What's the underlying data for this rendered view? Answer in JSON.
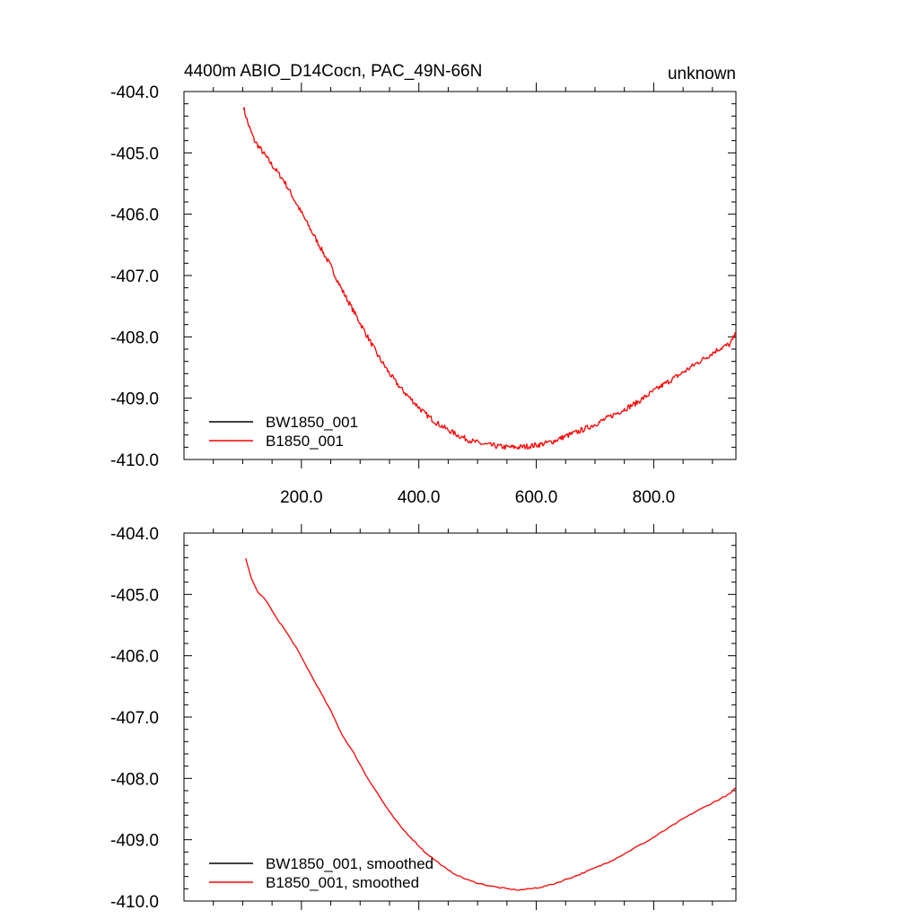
{
  "chart_data": [
    {
      "type": "line",
      "title": "4400m ABIO_D14Cocn, PAC_49N-66N",
      "right_title": "unknown",
      "xlim": [
        0,
        940
      ],
      "ylim": [
        -410.0,
        -404.0
      ],
      "x_ticks": [
        200,
        400,
        600,
        800
      ],
      "x_tick_labels": [
        "200.0",
        "400.0",
        "600.0",
        "800.0"
      ],
      "y_ticks": [
        -404,
        -405,
        -406,
        -407,
        -408,
        -409,
        -410
      ],
      "y_tick_labels": [
        "-404.0",
        "-405.0",
        "-406.0",
        "-407.0",
        "-408.0",
        "-409.0",
        "-410.0"
      ],
      "legend_position": "bottom-left",
      "noisy": true,
      "series": [
        {
          "name": "BW1850_001",
          "color": "#000000",
          "x": [],
          "y": []
        },
        {
          "name": "B1850_001",
          "color": "#ff0000",
          "x": [
            101,
            110,
            120,
            135,
            150,
            170,
            190,
            210,
            230,
            250,
            270,
            290,
            310,
            330,
            350,
            370,
            390,
            410,
            430,
            450,
            470,
            490,
            510,
            530,
            550,
            570,
            590,
            610,
            630,
            650,
            670,
            690,
            710,
            730,
            750,
            770,
            790,
            810,
            830,
            850,
            870,
            890,
            910,
            930,
            940
          ],
          "y": [
            -404.25,
            -404.55,
            -404.8,
            -405.0,
            -405.2,
            -405.45,
            -405.8,
            -406.15,
            -406.5,
            -406.85,
            -407.25,
            -407.6,
            -407.95,
            -408.3,
            -408.6,
            -408.85,
            -409.05,
            -409.25,
            -409.4,
            -409.52,
            -409.62,
            -409.7,
            -409.75,
            -409.78,
            -409.8,
            -409.8,
            -409.78,
            -409.75,
            -409.7,
            -409.62,
            -409.55,
            -409.47,
            -409.38,
            -409.28,
            -409.18,
            -409.08,
            -408.95,
            -408.82,
            -408.7,
            -408.58,
            -408.45,
            -408.33,
            -408.2,
            -408.12,
            -407.95
          ]
        }
      ]
    },
    {
      "type": "line",
      "xlim": [
        0,
        940
      ],
      "ylim": [
        -410.0,
        -404.0
      ],
      "x_ticks": [
        200,
        400,
        600,
        800
      ],
      "x_tick_labels": [],
      "y_ticks": [
        -404,
        -405,
        -406,
        -407,
        -408,
        -409,
        -410
      ],
      "y_tick_labels": [
        "-404.0",
        "-405.0",
        "-406.0",
        "-407.0",
        "-408.0",
        "-409.0",
        "-410.0"
      ],
      "legend_position": "bottom-left",
      "noisy": false,
      "series": [
        {
          "name": "BW1850_001, smoothed",
          "color": "#000000",
          "x": [],
          "y": []
        },
        {
          "name": "B1850_001, smoothed",
          "color": "#ff0000",
          "x": [
            105,
            115,
            125,
            140,
            155,
            170,
            190,
            210,
            230,
            250,
            270,
            290,
            310,
            330,
            350,
            370,
            390,
            410,
            430,
            450,
            470,
            490,
            510,
            530,
            550,
            570,
            590,
            610,
            630,
            650,
            670,
            690,
            710,
            730,
            750,
            770,
            790,
            810,
            830,
            850,
            870,
            890,
            910,
            930,
            940
          ],
          "y": [
            -404.4,
            -404.75,
            -404.95,
            -405.1,
            -405.35,
            -405.55,
            -405.85,
            -406.2,
            -406.55,
            -406.9,
            -407.3,
            -407.6,
            -407.95,
            -408.25,
            -408.55,
            -408.8,
            -409.0,
            -409.2,
            -409.35,
            -409.5,
            -409.6,
            -409.68,
            -409.73,
            -409.77,
            -409.8,
            -409.82,
            -409.8,
            -409.77,
            -409.72,
            -409.65,
            -409.58,
            -409.5,
            -409.42,
            -409.33,
            -409.23,
            -409.12,
            -409.02,
            -408.9,
            -408.78,
            -408.66,
            -408.55,
            -408.45,
            -408.35,
            -408.25,
            -408.15
          ]
        }
      ]
    }
  ]
}
